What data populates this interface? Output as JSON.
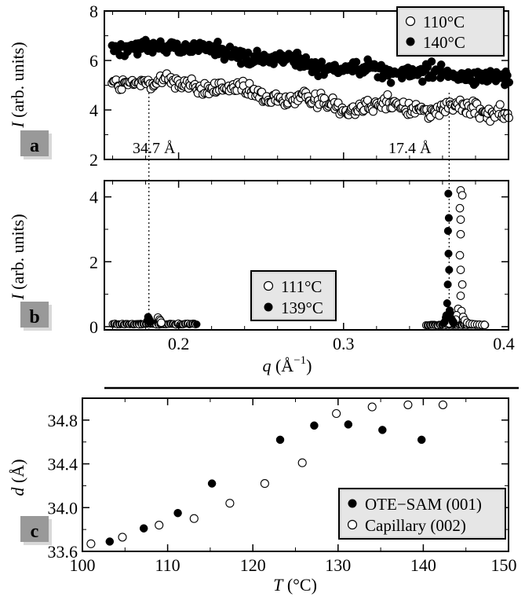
{
  "chart_data": [
    {
      "panel_label": "a",
      "type": "scatter",
      "ylabel_var": "I",
      "ylabel_unit": "(arb. units)",
      "ylim": [
        2,
        8
      ],
      "yticks": [
        "2",
        "4",
        "6",
        "8"
      ],
      "xlim": [
        0.155,
        0.4
      ],
      "grid": false,
      "legend_position": "top-right",
      "annotations": [
        {
          "text": "34.7 Å",
          "x": 0.182
        },
        {
          "text": "17.4 Å",
          "x": 0.364
        }
      ],
      "series": [
        {
          "name": "110°C",
          "marker": "open-circle",
          "x_range": [
            0.16,
            0.4
          ],
          "trend": {
            "x": [
              0.16,
              0.2,
              0.25,
              0.3,
              0.35,
              0.4
            ],
            "y": [
              5.1,
              5.1,
              4.6,
              4.2,
              4.1,
              3.9
            ]
          },
          "noise": 0.3
        },
        {
          "name": "140°C",
          "marker": "filled-circle",
          "x_range": [
            0.16,
            0.4
          ],
          "trend": {
            "x": [
              0.16,
              0.2,
              0.25,
              0.3,
              0.35,
              0.4
            ],
            "y": [
              6.5,
              6.6,
              6.1,
              5.7,
              5.5,
              5.3
            ]
          },
          "noise": 0.3
        }
      ]
    },
    {
      "panel_label": "b",
      "type": "scatter",
      "xlabel_var": "q",
      "xlabel_unit": "(Å",
      "xlabel_exp": "−1",
      "xlabel_close": ")",
      "xlim": [
        0.155,
        0.4
      ],
      "xticks": [
        "0.2",
        "0.3",
        "0.4"
      ],
      "ylabel_var": "I",
      "ylabel_unit": "(arb. units)",
      "ylim": [
        -0.1,
        4.5
      ],
      "yticks": [
        "0",
        "2",
        "4"
      ],
      "grid": false,
      "legend_position": "center",
      "series": [
        {
          "name": "111°C",
          "marker": "open-circle",
          "points": [
            [
              0.371,
              4.2
            ],
            [
              0.372,
              4.05
            ],
            [
              0.3705,
              3.65
            ],
            [
              0.371,
              3.3
            ],
            [
              0.371,
              2.85
            ],
            [
              0.3705,
              2.2
            ],
            [
              0.371,
              1.75
            ],
            [
              0.372,
              1.3
            ],
            [
              0.371,
              0.95
            ],
            [
              0.3695,
              0.55
            ],
            [
              0.3715,
              0.48
            ],
            [
              0.3685,
              0.35
            ],
            [
              0.3725,
              0.3
            ],
            [
              0.368,
              0.22
            ],
            [
              0.3735,
              0.2
            ],
            [
              0.3665,
              0.14
            ],
            [
              0.375,
              0.12
            ],
            [
              0.3765,
              0.09
            ],
            [
              0.378,
              0.08
            ],
            [
              0.3795,
              0.07
            ],
            [
              0.381,
              0.06
            ],
            [
              0.3825,
              0.06
            ],
            [
              0.384,
              0.05
            ],
            [
              0.3855,
              0.05
            ],
            [
              0.365,
              0.1
            ],
            [
              0.364,
              0.1
            ],
            [
              0.1875,
              0.28
            ],
            [
              0.1885,
              0.22
            ],
            [
              0.189,
              0.18
            ],
            [
              0.1895,
              0.12
            ]
          ]
        },
        {
          "name": "139°C",
          "marker": "filled-circle",
          "points": [
            [
              0.3635,
              4.1
            ],
            [
              0.3638,
              3.35
            ],
            [
              0.3633,
              2.95
            ],
            [
              0.3636,
              2.25
            ],
            [
              0.364,
              1.75
            ],
            [
              0.3632,
              1.3
            ],
            [
              0.3628,
              0.72
            ],
            [
              0.3643,
              0.5
            ],
            [
              0.3647,
              0.42
            ],
            [
              0.3623,
              0.35
            ],
            [
              0.362,
              0.28
            ],
            [
              0.3652,
              0.25
            ],
            [
              0.3657,
              0.22
            ],
            [
              0.3613,
              0.15
            ],
            [
              0.3662,
              0.14
            ],
            [
              0.3605,
              0.1
            ],
            [
              0.3668,
              0.1
            ],
            [
              0.1815,
              0.3
            ],
            [
              0.182,
              0.25
            ],
            [
              0.1825,
              0.2
            ],
            [
              0.181,
              0.18
            ],
            [
              0.183,
              0.15
            ]
          ]
        }
      ],
      "baseline_segments": [
        {
          "x": [
            0.16,
            0.211
          ],
          "y": 0.07,
          "noise": 0.04
        },
        {
          "x": [
            0.35,
            0.386
          ],
          "y": 0.05,
          "noise": 0.03
        }
      ]
    },
    {
      "panel_label": "c",
      "type": "scatter",
      "xlabel_var": "T",
      "xlabel_unit": "(°C)",
      "xlim": [
        100,
        150
      ],
      "xticks": [
        "100",
        "110",
        "120",
        "130",
        "140",
        "150"
      ],
      "ylabel_var": "d",
      "ylabel_unit": "(Å)",
      "ylim": [
        33.6,
        35.0
      ],
      "yticks": [
        "33.6",
        "34.0",
        "34.4",
        "34.8"
      ],
      "grid": false,
      "legend_position": "bottom-right",
      "series": [
        {
          "name": "OTE−SAM (001)",
          "marker": "filled-circle",
          "points": [
            [
              103.2,
              33.69
            ],
            [
              107.2,
              33.81
            ],
            [
              111.2,
              33.95
            ],
            [
              115.2,
              34.22
            ],
            [
              123.2,
              34.62
            ],
            [
              127.2,
              34.75
            ],
            [
              131.2,
              34.76
            ],
            [
              135.2,
              34.71
            ],
            [
              139.8,
              34.62
            ]
          ]
        },
        {
          "name": "Capillary (002)",
          "marker": "open-circle",
          "points": [
            [
              101.0,
              33.67
            ],
            [
              104.7,
              33.73
            ],
            [
              109.0,
              33.84
            ],
            [
              113.1,
              33.9
            ],
            [
              117.3,
              34.04
            ],
            [
              121.4,
              34.22
            ],
            [
              125.8,
              34.41
            ],
            [
              129.8,
              34.86
            ],
            [
              134.0,
              34.92
            ],
            [
              138.2,
              34.94
            ],
            [
              142.3,
              34.94
            ]
          ]
        }
      ]
    }
  ]
}
